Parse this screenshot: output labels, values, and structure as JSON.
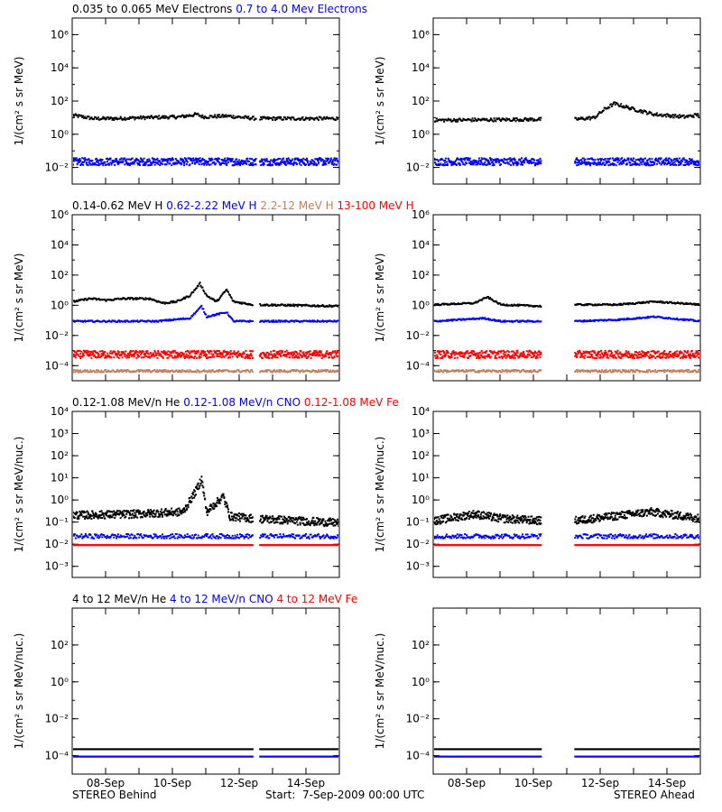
{
  "footer": {
    "left": "STEREO Behind",
    "center": "Start:  7-Sep-2009 00:00 UTC",
    "right": "STEREO Ahead"
  },
  "colors": {
    "black": "#000000",
    "blue": "#0000ff",
    "brown": "#c08060",
    "red": "#ff0000"
  },
  "chart_data": [
    {
      "type": "scatter",
      "panel": "electrons-behind",
      "title_parts": [
        {
          "text": "0.035 to 0.065 MeV Electrons",
          "color": "#000000"
        },
        {
          "text": "0.7 to 4.0 Mev Electrons",
          "color": "#0000ff"
        }
      ],
      "ylabel": "1/(cm² s sr MeV)",
      "log_y": true,
      "ylim_exp": [
        -3,
        7
      ],
      "yticks_exp": [
        -2,
        0,
        2,
        4,
        6
      ],
      "xlim": [
        0,
        8
      ],
      "xticks": [
        {
          "x": 1,
          "label": "08-Sep"
        },
        {
          "x": 3,
          "label": "10-Sep"
        },
        {
          "x": 5,
          "label": "12-Sep"
        },
        {
          "x": 7,
          "label": "14-Sep"
        }
      ],
      "gaps": [
        [
          5.5,
          5.6
        ]
      ],
      "series": [
        {
          "color": "#000000",
          "y_log": [
            [
              0,
              1.2
            ],
            [
              0.3,
              1.1
            ],
            [
              0.6,
              1.0
            ],
            [
              1.2,
              1.0
            ],
            [
              2.0,
              1.05
            ],
            [
              3.2,
              1.1
            ],
            [
              3.7,
              1.25
            ],
            [
              3.9,
              1.1
            ],
            [
              4.6,
              1.15
            ],
            [
              5.5,
              1.0
            ],
            [
              8,
              1.0
            ]
          ],
          "scatter": 0.1
        },
        {
          "color": "#0000ff",
          "y_log": [
            [
              0,
              -1.6
            ],
            [
              8,
              -1.6
            ]
          ],
          "scatter": 0.22
        }
      ]
    },
    {
      "type": "scatter",
      "panel": "electrons-ahead",
      "title_parts": [],
      "ylabel": "1/(cm² s sr MeV)",
      "log_y": true,
      "ylim_exp": [
        -3,
        7
      ],
      "yticks_exp": [
        -2,
        0,
        2,
        4,
        6
      ],
      "xlim": [
        0,
        8
      ],
      "xticks": [
        {
          "x": 1,
          "label": "08-Sep"
        },
        {
          "x": 3,
          "label": "10-Sep"
        },
        {
          "x": 5,
          "label": "12-Sep"
        },
        {
          "x": 7,
          "label": "14-Sep"
        }
      ],
      "gaps": [
        [
          3.2,
          4.2
        ]
      ],
      "series": [
        {
          "color": "#000000",
          "y_log": [
            [
              0,
              0.9
            ],
            [
              3.2,
              0.95
            ],
            [
              4.2,
              0.95
            ],
            [
              4.8,
              1.05
            ],
            [
              5.1,
              1.55
            ],
            [
              5.4,
              1.9
            ],
            [
              6.0,
              1.55
            ],
            [
              6.6,
              1.25
            ],
            [
              7.5,
              1.1
            ],
            [
              8,
              1.25
            ]
          ],
          "scatter": 0.1
        },
        {
          "color": "#0000ff",
          "y_log": [
            [
              0,
              -1.6
            ],
            [
              8,
              -1.6
            ]
          ],
          "scatter": 0.22
        }
      ]
    },
    {
      "type": "scatter",
      "panel": "protons-behind",
      "title_parts": [
        {
          "text": "0.14-0.62 MeV H",
          "color": "#000000"
        },
        {
          "text": "0.62-2.22 MeV H",
          "color": "#0000ff"
        },
        {
          "text": "2.2-12 MeV H",
          "color": "#c08060"
        },
        {
          "text": "13-100 MeV H",
          "color": "#ff0000"
        }
      ],
      "ylabel": "1/(cm² s sr MeV)",
      "log_y": true,
      "ylim_exp": [
        -5,
        6
      ],
      "yticks_exp": [
        -4,
        -2,
        0,
        2,
        4,
        6
      ],
      "xlim": [
        0,
        8
      ],
      "xticks": [
        {
          "x": 1,
          "label": "08-Sep"
        },
        {
          "x": 3,
          "label": "10-Sep"
        },
        {
          "x": 5,
          "label": "12-Sep"
        },
        {
          "x": 7,
          "label": "14-Sep"
        }
      ],
      "gaps": [
        [
          5.4,
          5.6
        ]
      ],
      "series": [
        {
          "color": "#000000",
          "y_log": [
            [
              0,
              0.3
            ],
            [
              0.5,
              0.5
            ],
            [
              1.0,
              0.4
            ],
            [
              1.5,
              0.5
            ],
            [
              2.3,
              0.5
            ],
            [
              2.7,
              0.2
            ],
            [
              3.1,
              0.3
            ],
            [
              3.5,
              0.7
            ],
            [
              3.8,
              1.5
            ],
            [
              4.0,
              0.7
            ],
            [
              4.3,
              0.3
            ],
            [
              4.6,
              1.1
            ],
            [
              4.8,
              0.3
            ],
            [
              5.4,
              0.1
            ],
            [
              8,
              0.0
            ]
          ],
          "scatter": 0.06
        },
        {
          "color": "#0000ff",
          "y_log": [
            [
              0,
              -1.0
            ],
            [
              2.5,
              -1.0
            ],
            [
              3.5,
              -0.8
            ],
            [
              3.85,
              0.0
            ],
            [
              4.0,
              -0.7
            ],
            [
              4.6,
              -0.4
            ],
            [
              4.8,
              -1.0
            ],
            [
              8,
              -1.0
            ]
          ],
          "scatter": 0.05
        },
        {
          "color": "#ff0000",
          "y_log": [
            [
              0,
              -3.2
            ],
            [
              8,
              -3.2
            ]
          ],
          "scatter": 0.25
        },
        {
          "color": "#c08060",
          "y_log": [
            [
              0,
              -4.3
            ],
            [
              8,
              -4.3
            ]
          ],
          "scatter": 0.08
        }
      ]
    },
    {
      "type": "scatter",
      "panel": "protons-ahead",
      "title_parts": [],
      "ylabel": "1/(cm² s sr MeV)",
      "log_y": true,
      "ylim_exp": [
        -5,
        6
      ],
      "yticks_exp": [
        -4,
        -2,
        0,
        2,
        4,
        6
      ],
      "xlim": [
        0,
        8
      ],
      "xticks": [
        {
          "x": 1,
          "label": "08-Sep"
        },
        {
          "x": 3,
          "label": "10-Sep"
        },
        {
          "x": 5,
          "label": "12-Sep"
        },
        {
          "x": 7,
          "label": "14-Sep"
        }
      ],
      "gaps": [
        [
          3.2,
          4.2
        ]
      ],
      "series": [
        {
          "color": "#000000",
          "y_log": [
            [
              0,
              0.1
            ],
            [
              1.2,
              0.2
            ],
            [
              1.6,
              0.6
            ],
            [
              2.0,
              0.1
            ],
            [
              3.2,
              0.0
            ],
            [
              4.2,
              0.1
            ],
            [
              5.5,
              0.1
            ],
            [
              6.6,
              0.3
            ],
            [
              8,
              0.1
            ]
          ],
          "scatter": 0.05
        },
        {
          "color": "#0000ff",
          "y_log": [
            [
              0,
              -1.0
            ],
            [
              1.5,
              -0.8
            ],
            [
              2.0,
              -1.0
            ],
            [
              3.2,
              -1.0
            ],
            [
              4.2,
              -1.0
            ],
            [
              5.5,
              -0.9
            ],
            [
              6.6,
              -0.7
            ],
            [
              8,
              -1.0
            ]
          ],
          "scatter": 0.05
        },
        {
          "color": "#ff0000",
          "y_log": [
            [
              0,
              -3.2
            ],
            [
              8,
              -3.2
            ]
          ],
          "scatter": 0.25
        },
        {
          "color": "#c08060",
          "y_log": [
            [
              0,
              -4.3
            ],
            [
              8,
              -4.3
            ]
          ],
          "scatter": 0.08
        }
      ]
    },
    {
      "type": "scatter",
      "panel": "heavy-low-behind",
      "title_parts": [
        {
          "text": "0.12-1.08 MeV/n He",
          "color": "#000000"
        },
        {
          "text": "0.12-1.08 MeV/n CNO",
          "color": "#0000ff"
        },
        {
          "text": "0.12-1.08 MeV Fe",
          "color": "#ff0000"
        }
      ],
      "ylabel": "1/(cm² s sr MeV/nuc.)",
      "log_y": true,
      "ylim_exp": [
        -3.5,
        4
      ],
      "yticks_exp": [
        -3,
        -2,
        -1,
        0,
        1,
        2,
        3,
        4
      ],
      "xlim": [
        0,
        8
      ],
      "xticks": [
        {
          "x": 1,
          "label": "08-Sep"
        },
        {
          "x": 3,
          "label": "10-Sep"
        },
        {
          "x": 5,
          "label": "12-Sep"
        },
        {
          "x": 7,
          "label": "14-Sep"
        }
      ],
      "gaps": [
        [
          5.4,
          5.6
        ]
      ],
      "series": [
        {
          "color": "#000000",
          "y_log": [
            [
              0,
              -0.65
            ],
            [
              1.8,
              -0.6
            ],
            [
              3.3,
              -0.5
            ],
            [
              3.7,
              0.5
            ],
            [
              3.85,
              1.0
            ],
            [
              4.0,
              -0.5
            ],
            [
              4.5,
              0.2
            ],
            [
              4.7,
              -0.7
            ],
            [
              5.4,
              -0.8
            ],
            [
              8,
              -1.0
            ]
          ],
          "scatter": 0.18
        },
        {
          "color": "#0000ff",
          "y_log": [
            [
              0,
              -1.6
            ],
            [
              8,
              -1.6
            ]
          ],
          "scatter": 0.1
        },
        {
          "color": "#ff0000",
          "y_log": [
            [
              0,
              -2.0
            ],
            [
              8,
              -2.0
            ]
          ],
          "scatter": 0.0
        }
      ]
    },
    {
      "type": "scatter",
      "panel": "heavy-low-ahead",
      "title_parts": [],
      "ylabel": "1/(cm² s sr MeV/nuc.)",
      "log_y": true,
      "ylim_exp": [
        -3.5,
        4
      ],
      "yticks_exp": [
        -3,
        -2,
        -1,
        0,
        1,
        2,
        3,
        4
      ],
      "xlim": [
        0,
        8
      ],
      "xticks": [
        {
          "x": 1,
          "label": "08-Sep"
        },
        {
          "x": 3,
          "label": "10-Sep"
        },
        {
          "x": 5,
          "label": "12-Sep"
        },
        {
          "x": 7,
          "label": "14-Sep"
        }
      ],
      "gaps": [
        [
          3.2,
          4.2
        ]
      ],
      "series": [
        {
          "color": "#000000",
          "y_log": [
            [
              0,
              -0.9
            ],
            [
              1.2,
              -0.6
            ],
            [
              2.0,
              -0.8
            ],
            [
              3.2,
              -0.9
            ],
            [
              4.2,
              -0.9
            ],
            [
              6.5,
              -0.5
            ],
            [
              8,
              -0.8
            ]
          ],
          "scatter": 0.18
        },
        {
          "color": "#0000ff",
          "y_log": [
            [
              0,
              -1.6
            ],
            [
              8,
              -1.6
            ]
          ],
          "scatter": 0.1
        },
        {
          "color": "#ff0000",
          "y_log": [
            [
              0,
              -2.0
            ],
            [
              8,
              -2.0
            ]
          ],
          "scatter": 0.0
        }
      ]
    },
    {
      "type": "scatter",
      "panel": "heavy-high-behind",
      "title_parts": [
        {
          "text": "4 to 12 MeV/n He",
          "color": "#000000"
        },
        {
          "text": "4 to 12 MeV/n CNO",
          "color": "#0000ff"
        },
        {
          "text": "4 to 12 MeV Fe",
          "color": "#ff0000"
        }
      ],
      "ylabel": "1/(cm² s sr MeV/nuc.)",
      "log_y": true,
      "ylim_exp": [
        -5,
        4
      ],
      "yticks_exp": [
        -4,
        -2,
        0,
        2
      ],
      "xlim": [
        0,
        8
      ],
      "xticks": [
        {
          "x": 1,
          "label": "08-Sep"
        },
        {
          "x": 3,
          "label": "10-Sep"
        },
        {
          "x": 5,
          "label": "12-Sep"
        },
        {
          "x": 7,
          "label": "14-Sep"
        }
      ],
      "gaps": [
        [
          5.4,
          5.6
        ]
      ],
      "series": [
        {
          "color": "#000000",
          "y_log": [
            [
              0,
              -3.6
            ],
            [
              8,
              -3.6
            ]
          ],
          "scatter": 0.0
        },
        {
          "color": "#0000ff",
          "y_log": [
            [
              0,
              -4.0
            ],
            [
              8,
              -4.0
            ]
          ],
          "scatter": 0.0
        }
      ]
    },
    {
      "type": "scatter",
      "panel": "heavy-high-ahead",
      "title_parts": [],
      "ylabel": "1/(cm² s sr MeV/nuc.)",
      "log_y": true,
      "ylim_exp": [
        -5,
        4
      ],
      "yticks_exp": [
        -4,
        -2,
        0,
        2
      ],
      "xlim": [
        0,
        8
      ],
      "xticks": [
        {
          "x": 1,
          "label": "08-Sep"
        },
        {
          "x": 3,
          "label": "10-Sep"
        },
        {
          "x": 5,
          "label": "12-Sep"
        },
        {
          "x": 7,
          "label": "14-Sep"
        }
      ],
      "gaps": [
        [
          3.2,
          4.2
        ]
      ],
      "series": [
        {
          "color": "#000000",
          "y_log": [
            [
              0,
              -3.6
            ],
            [
              8,
              -3.6
            ]
          ],
          "scatter": 0.0
        },
        {
          "color": "#0000ff",
          "y_log": [
            [
              0,
              -4.0
            ],
            [
              8,
              -4.0
            ]
          ],
          "scatter": 0.0
        }
      ]
    }
  ]
}
